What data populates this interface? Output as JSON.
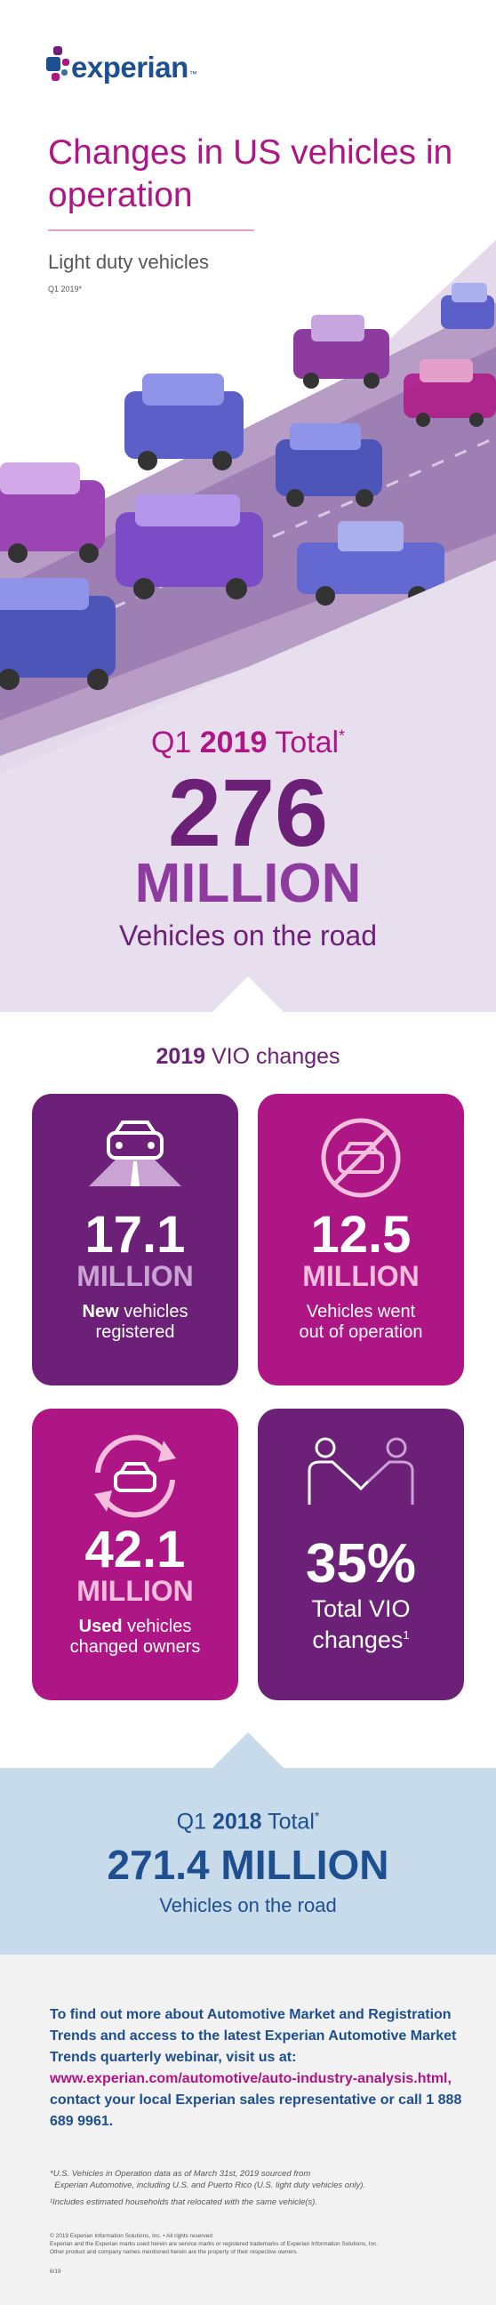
{
  "header": {
    "logo_text": "experian",
    "logo_tm": "™",
    "title": "Changes in US vehicles in operation"
  },
  "hero": {
    "subtitle": "Light duty vehicles",
    "subnote": "Q1 2019*",
    "total_prefix": "Q1 ",
    "total_year": "2019",
    "total_suffix": " Total",
    "total_mark": "*",
    "total_number": "276",
    "total_unit": "MILLION",
    "total_desc": "Vehicles on the road"
  },
  "vio": {
    "title_year": "2019",
    "title_rest": " VIO changes",
    "cards": [
      {
        "number": "17.1",
        "unit": "MILLION",
        "desc_bold": "New",
        "desc_rest": " vehicles",
        "desc_line2": "registered",
        "icon": "car-road-icon"
      },
      {
        "number": "12.5",
        "unit": "MILLION",
        "desc_line1": "Vehicles went",
        "desc_line2": "out of operation",
        "icon": "no-car-icon"
      },
      {
        "number": "42.1",
        "unit": "MILLION",
        "desc_bold": "Used",
        "desc_rest": " vehicles",
        "desc_line2": "changed owners",
        "icon": "car-cycle-icon"
      },
      {
        "number": "35%",
        "desc_line1": "Total VIO",
        "desc_line2": "changes",
        "desc_sup": "1",
        "icon": "handshake-icon"
      }
    ]
  },
  "q2018": {
    "label_prefix": "Q1 ",
    "label_year": "2018",
    "label_suffix": " Total",
    "label_mark": "*",
    "number": "271.4 MILLION",
    "desc": "Vehicles on the road"
  },
  "footer": {
    "cta_1": "To find out more about Automotive Market and Registration Trends and access to the latest Experian Automotive Market Trends quarterly webinar, visit us at:",
    "cta_link": "www.experian.com/automotive/auto-industry-analysis.html,",
    "cta_2": "contact your local Experian sales representative or call 1 888 689 9961.",
    "footnote_1a": "*U.S. Vehicles in Operation data as of March 31st, 2019 sourced from",
    "footnote_1b": "Experian Automotive, including U.S. and Puerto Rico (U.S. light duty vehicles only).",
    "footnote_2": "¹Includes estimated households that relocated with the same vehicle(s).",
    "legal_1": "© 2019 Experian Information Solutions, Inc. • All rights reserved",
    "legal_2": "Experian and the Experian marks used herein are service marks or registered trademarks of Experian Information Solutions, Inc.",
    "legal_3": "Other product and company names mentioned herein are the property of their respective owners.",
    "code": "6/19"
  },
  "colors": {
    "magenta": "#af1685",
    "purple": "#6d2077",
    "violet": "#8d3b9f",
    "navy": "#1d4f91",
    "light_blue": "#c8dbea"
  }
}
